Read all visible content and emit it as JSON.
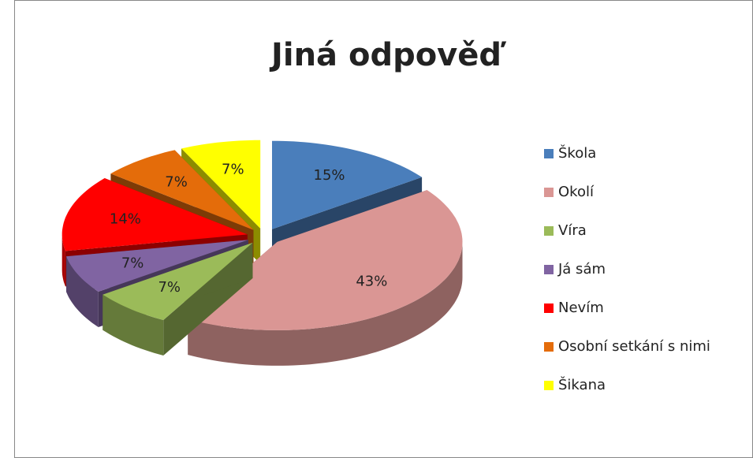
{
  "chart_data": {
    "type": "pie",
    "title": "Jiná odpověď",
    "categories": [
      "Škola",
      "Okolí",
      "Víra",
      "Já sám",
      "Nevím",
      "Osobní setkání s nimi",
      "Šikana"
    ],
    "values": [
      15,
      43,
      7,
      7,
      14,
      7,
      7
    ],
    "value_labels": [
      "15%",
      "43%",
      "7%",
      "7%",
      "14%",
      "7%",
      "7%"
    ],
    "colors": [
      "#4a7ebb",
      "#da9694",
      "#9bbb59",
      "#8064a2",
      "#ff0000",
      "#e46c0a",
      "#ffff00"
    ],
    "legend": "right"
  }
}
